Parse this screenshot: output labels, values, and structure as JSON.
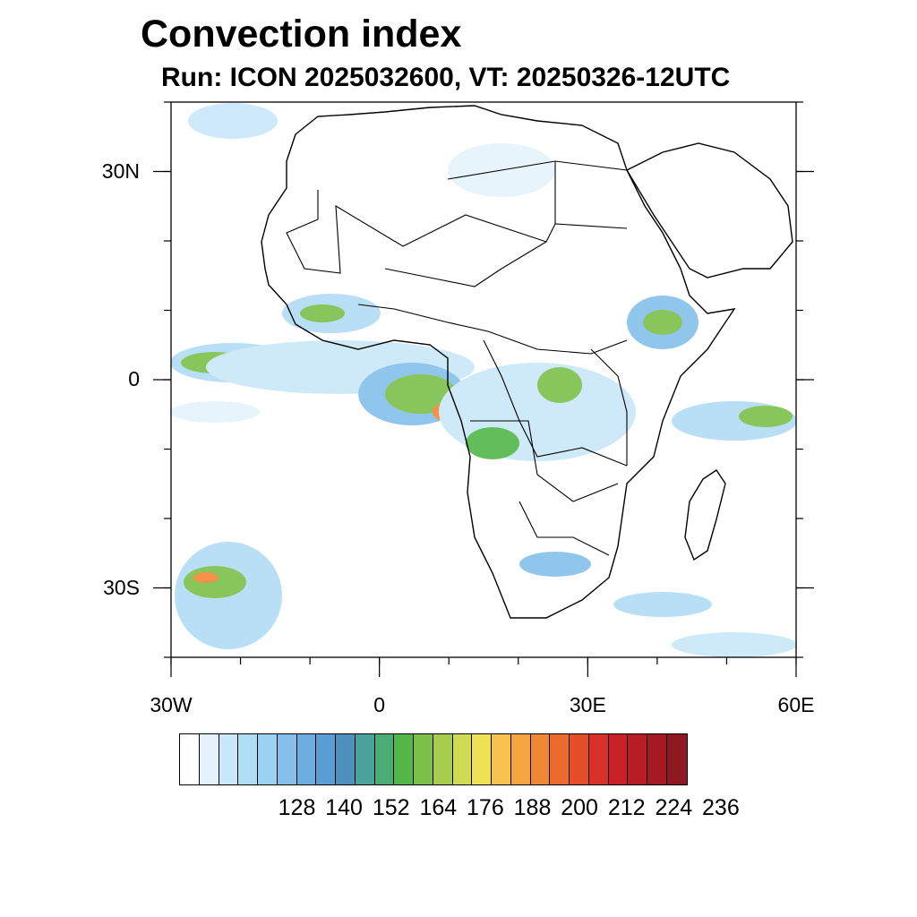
{
  "title": "Convection index",
  "subtitle": "Run: ICON 2025032600,  VT: 20250326-12UTC",
  "map": {
    "lon_range": [
      -30,
      60
    ],
    "lat_range": [
      -40,
      40
    ],
    "lat_ticks": [
      {
        "value": 30,
        "label": "30N"
      },
      {
        "value": 0,
        "label": "0"
      },
      {
        "value": -30,
        "label": "30S"
      }
    ],
    "lon_ticks": [
      {
        "value": -30,
        "label": "30W"
      },
      {
        "value": 0,
        "label": "0"
      },
      {
        "value": 30,
        "label": "30E"
      },
      {
        "value": 60,
        "label": "60E"
      }
    ],
    "coast_color": "#000000"
  },
  "colorbar": {
    "colors": [
      "#ffffff",
      "#e4f3fc",
      "#c9e8f9",
      "#b1dcf6",
      "#9ad2f3",
      "#84c0eb",
      "#6daee0",
      "#5a9dd3",
      "#4f91be",
      "#4aa29c",
      "#4aad73",
      "#52b747",
      "#7cc04a",
      "#a8cd4e",
      "#d0da55",
      "#efe257",
      "#f7c24d",
      "#f6a43f",
      "#f18634",
      "#ec6a2b",
      "#e44f2a",
      "#d8302a",
      "#c82228",
      "#b81d25",
      "#a51a22",
      "#901820"
    ],
    "labels": [
      "128",
      "140",
      "152",
      "164",
      "176",
      "188",
      "200",
      "212",
      "224",
      "236"
    ]
  }
}
